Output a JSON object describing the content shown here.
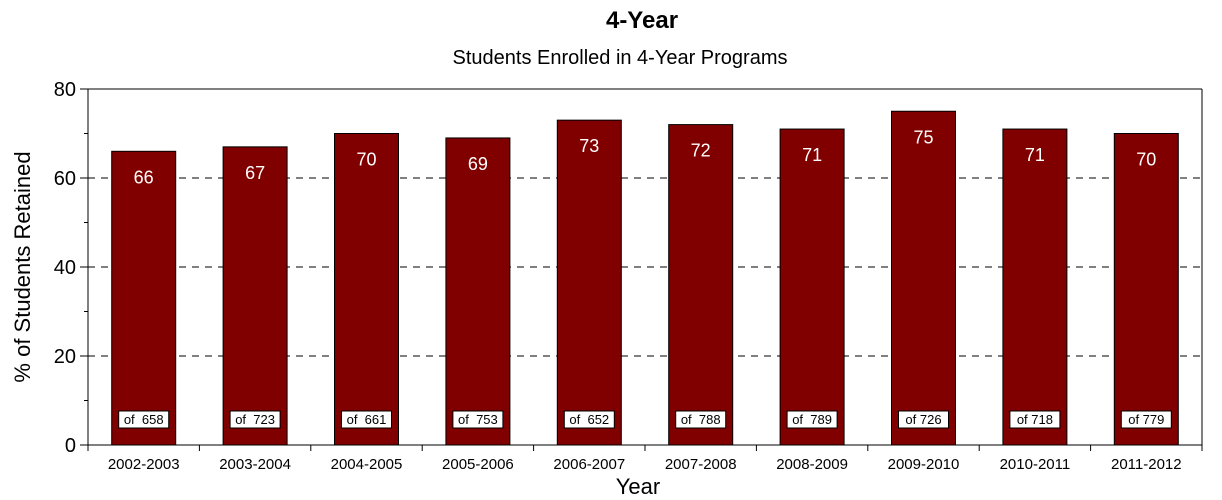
{
  "chart_data": {
    "type": "bar",
    "title": "4-Year",
    "subtitle": "Students Enrolled in 4-Year Programs",
    "xlabel": "Year",
    "ylabel": "% of Students Retained",
    "ylim": [
      0,
      80
    ],
    "yticks": [
      0,
      20,
      40,
      60,
      80
    ],
    "grid": "horizontal dashed",
    "categories": [
      "2002-2003",
      "2003-2004",
      "2004-2005",
      "2005-2006",
      "2006-2007",
      "2007-2008",
      "2008-2009",
      "2009-2010",
      "2010-2011",
      "2011-2012"
    ],
    "values": [
      66,
      67,
      70,
      69,
      73,
      72,
      71,
      75,
      71,
      70
    ],
    "count_labels": [
      "of  658",
      "of  723",
      "of  661",
      "of  753",
      "of  652",
      "of  788",
      "of  789",
      "of 726",
      "of 718",
      "of 779"
    ],
    "colors": {
      "bar": "#800000",
      "bar_stroke": "#000000"
    }
  }
}
